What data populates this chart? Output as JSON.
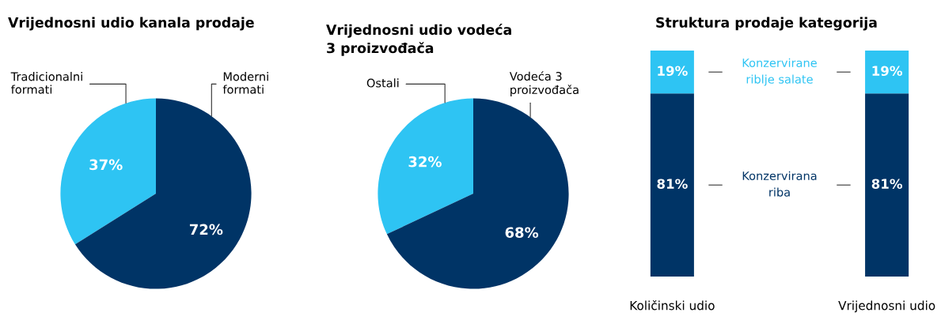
{
  "chart_data": [
    {
      "type": "pie",
      "title": "Vrijednosni udio kanala prodaje",
      "categories": [
        "Tradicionalni\nformati",
        "Moderni\nformati"
      ],
      "values": [
        37,
        72
      ],
      "colors": [
        "#2ec4f3",
        "#003466"
      ],
      "value_labels": [
        "37%",
        "72%"
      ],
      "legend": false
    },
    {
      "type": "pie",
      "title": "Vrijednosni udio vodeća\n3 proizvođača",
      "categories": [
        "Ostali",
        "Vodeća 3\nproizvođača"
      ],
      "values": [
        32,
        68
      ],
      "colors": [
        "#2ec4f3",
        "#003466"
      ],
      "value_labels": [
        "32%",
        "68%"
      ],
      "legend": false
    },
    {
      "type": "bar",
      "title": "Struktura prodaje kategorija",
      "stacked": true,
      "categories": [
        "Količinski udio",
        "Vrijednosni udio"
      ],
      "series": [
        {
          "name": "Konzervirana\nriba",
          "color": "#003466",
          "values": [
            81,
            81
          ],
          "value_labels": [
            "81%",
            "81%"
          ]
        },
        {
          "name": "Konzervirane\nriblje salate",
          "color": "#2ec4f3",
          "values": [
            19,
            19
          ],
          "value_labels": [
            "19%",
            "19%"
          ]
        }
      ],
      "legend": false
    }
  ]
}
